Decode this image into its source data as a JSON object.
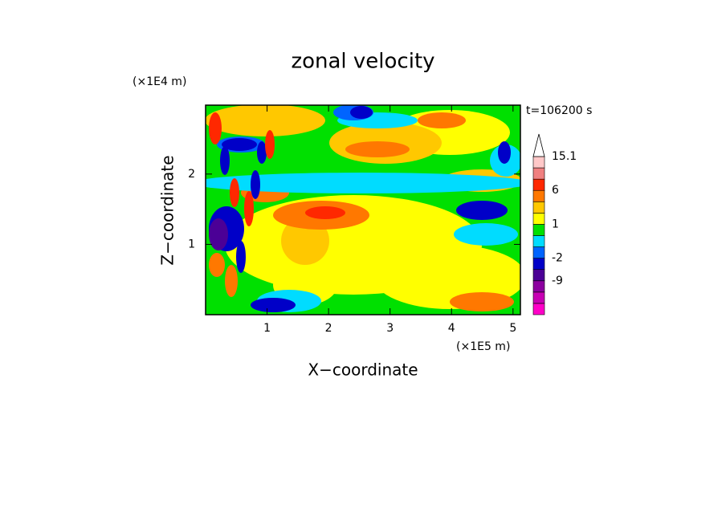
{
  "chart_data": {
    "type": "contour",
    "title": "zonal velocity",
    "x_label": "X−coordinate",
    "y_label": "Z−coordinate",
    "x_unit": "(×1E5 m)",
    "y_unit": "(×1E4 m)",
    "time_label": "t=106200 s",
    "xlim": [
      0,
      5.12
    ],
    "xticks": [
      1,
      2,
      3,
      4,
      5
    ],
    "ylim": [
      0,
      2.98
    ],
    "yticks": [
      1,
      2
    ],
    "levels": [
      -15,
      -12,
      -9,
      -6,
      -2,
      -1,
      0,
      1,
      2,
      3,
      6,
      9,
      12,
      15.1
    ],
    "colors": [
      "#ff00c8",
      "#c800b4",
      "#8c00a0",
      "#4b0096",
      "#0000c8",
      "#0064ff",
      "#00dcff",
      "#00e000",
      "#ffff00",
      "#ffc800",
      "#ff7800",
      "#ff2800",
      "#f08080",
      "#ffc8c8",
      "#ffffff"
    ],
    "colorbar_ticks": [
      15.1,
      6,
      1,
      -2,
      -9
    ]
  }
}
